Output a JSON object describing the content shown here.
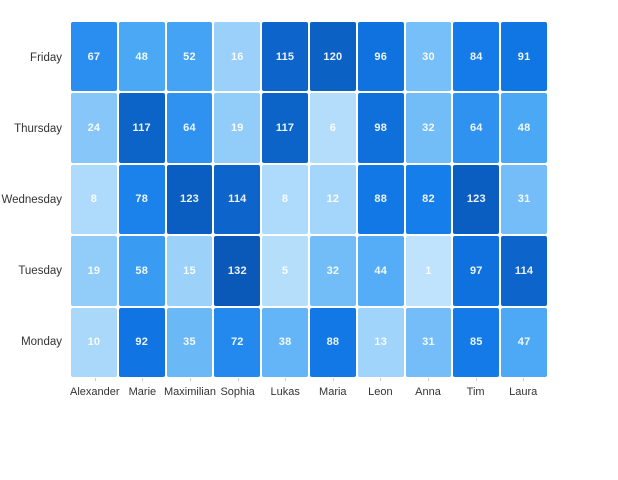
{
  "chart_data": {
    "type": "heatmap",
    "title": "",
    "xlabel": "",
    "ylabel": "",
    "legend": "none",
    "grid": "white 2px gaps between cells",
    "x_categories": [
      "Alexander",
      "Marie",
      "Maximilian",
      "Sophia",
      "Lukas",
      "Maria",
      "Leon",
      "Anna",
      "Tim",
      "Laura"
    ],
    "y_categories": [
      "Friday",
      "Thursday",
      "Wednesday",
      "Tuesday",
      "Monday"
    ],
    "series": [
      {
        "name": "Friday",
        "values": [
          67,
          48,
          52,
          16,
          115,
          120,
          96,
          30,
          84,
          91
        ]
      },
      {
        "name": "Thursday",
        "values": [
          24,
          117,
          64,
          19,
          117,
          6,
          98,
          32,
          64,
          48
        ]
      },
      {
        "name": "Wednesday",
        "values": [
          8,
          78,
          123,
          114,
          8,
          12,
          88,
          82,
          123,
          31
        ]
      },
      {
        "name": "Tuesday",
        "values": [
          19,
          58,
          15,
          132,
          5,
          32,
          44,
          1,
          97,
          114
        ]
      },
      {
        "name": "Monday",
        "values": [
          10,
          92,
          35,
          72,
          38,
          88,
          13,
          31,
          85,
          47
        ]
      }
    ],
    "value_range": [
      1,
      132
    ],
    "colors": {
      "background": "#ffffff",
      "cell_text": "rgba(255,255,255,0.92)",
      "axis_label": "#333333",
      "tick": "#cccccc",
      "scale_stops": [
        {
          "t": 0.0,
          "hex": "#bfe3fc"
        },
        {
          "t": 0.36,
          "hex": "#4aa8f5"
        },
        {
          "t": 0.5,
          "hex": "#2b8ff0"
        },
        {
          "t": 0.65,
          "hex": "#1179e8"
        },
        {
          "t": 1.0,
          "hex": "#0a58b8"
        }
      ]
    }
  }
}
